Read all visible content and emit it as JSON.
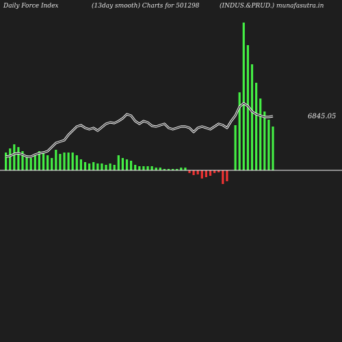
{
  "header": {
    "left": "Daily Force  Index",
    "center": "(13day smooth) Charts for 501298",
    "right": "(INDUS.&PRUD.) munafasutra.in"
  },
  "colors": {
    "background": "#1e1e1e",
    "positive": "#44ee44",
    "negative": "#ee3333",
    "line": "#ffffff",
    "zero": "#ffffff",
    "text": "#e8e8e8"
  },
  "chart_data": {
    "type": "bar",
    "title": "",
    "xlabel": "",
    "ylabel": "",
    "last_value_label": "6845.05",
    "values": [
      26,
      32,
      38,
      34,
      28,
      22,
      18,
      22,
      28,
      26,
      22,
      18,
      30,
      24,
      26,
      26,
      26,
      22,
      16,
      12,
      10,
      12,
      10,
      10,
      8,
      10,
      8,
      22,
      18,
      16,
      14,
      8,
      6,
      6,
      6,
      6,
      4,
      4,
      2,
      2,
      2,
      2,
      4,
      4,
      -4,
      -7,
      -6,
      -12,
      -10,
      -8,
      -4,
      -3,
      -20,
      -16,
      0,
      66,
      114,
      216,
      183,
      155,
      128,
      105,
      86,
      74,
      64
    ],
    "smooth_line": [
      20,
      21,
      24,
      25,
      23,
      20,
      20,
      23,
      25,
      26,
      28,
      34,
      40,
      42,
      44,
      52,
      58,
      64,
      66,
      62,
      60,
      62,
      58,
      63,
      68,
      70,
      69,
      72,
      76,
      82,
      80,
      72,
      68,
      72,
      70,
      65,
      64,
      66,
      68,
      62,
      60,
      62,
      64,
      64,
      62,
      56,
      62,
      64,
      62,
      60,
      64,
      68,
      66,
      62,
      72,
      80,
      93,
      98,
      94,
      86,
      82,
      80,
      78,
      78,
      79
    ],
    "ylim": [
      -40,
      220
    ]
  }
}
